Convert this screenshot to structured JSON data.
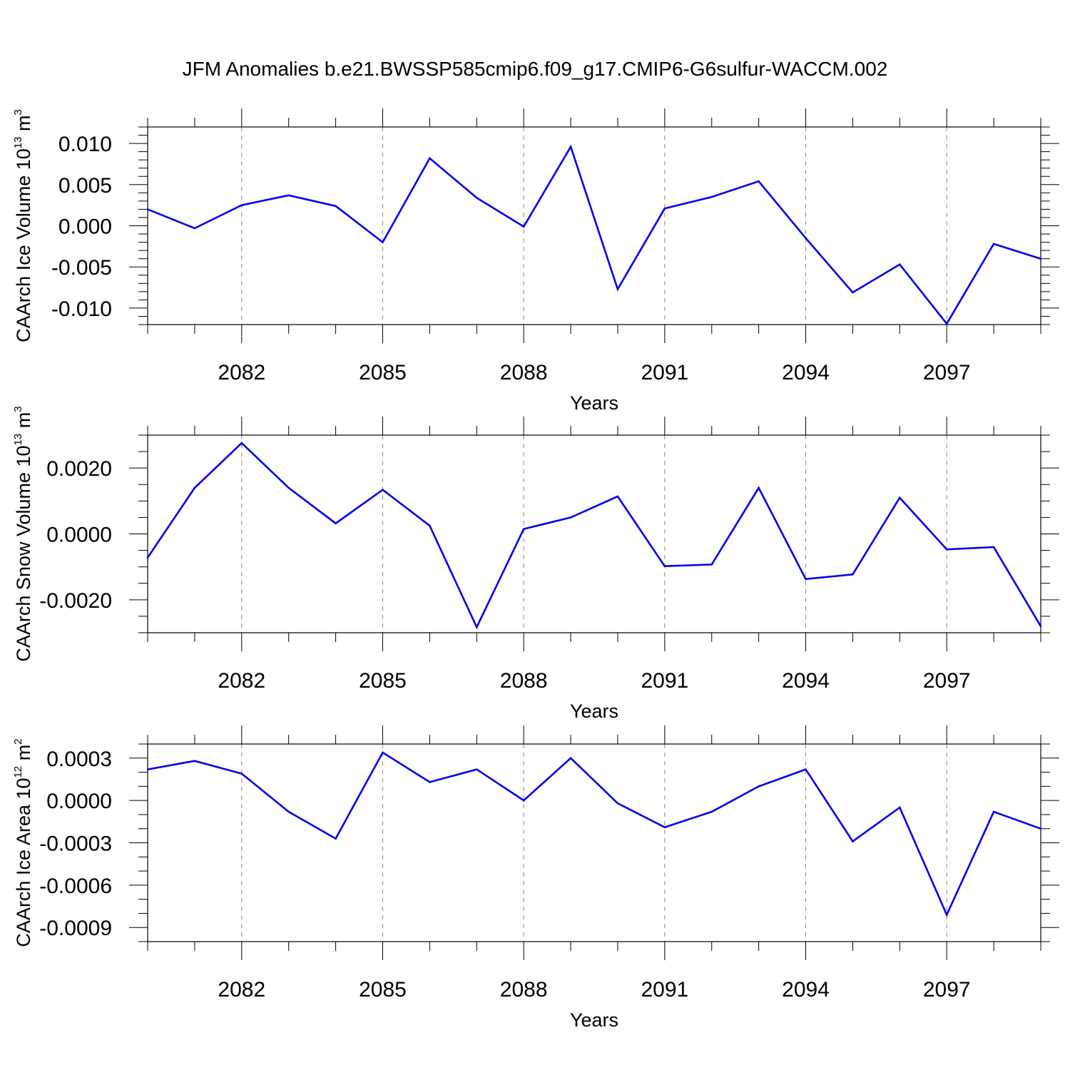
{
  "figure": {
    "title": "JFM Anomalies b.e21.BWSSP585cmip6.f09_g17.CMIP6-G6sulfur-WACCM.002",
    "line_color": "#0000ee",
    "grid_color": "#888888"
  },
  "chart_data": [
    {
      "type": "line",
      "xlabel": "Years",
      "ylabel": {
        "base": "CAArch Ice Volume 10",
        "exp": "13",
        "unit": " m",
        "unit_exp": "3"
      },
      "xlim": [
        2080,
        2099
      ],
      "ylim": [
        -0.012,
        0.012
      ],
      "xticks": [
        2082,
        2085,
        2088,
        2091,
        2094,
        2097
      ],
      "xtick_labels": [
        "2082",
        "2085",
        "2088",
        "2091",
        "2094",
        "2097"
      ],
      "yticks": [
        0.01,
        0.005,
        0.0,
        -0.005,
        -0.01
      ],
      "ytick_labels": [
        "0.010",
        "0.005",
        "0.000",
        "-0.005",
        "-0.010"
      ],
      "grid": "x-dashed",
      "x": [
        2080,
        2081,
        2082,
        2083,
        2084,
        2085,
        2086,
        2087,
        2088,
        2089,
        2090,
        2091,
        2092,
        2093,
        2094,
        2095,
        2096,
        2097,
        2098,
        2099
      ],
      "series": [
        {
          "values": [
            0.002,
            -0.0003,
            0.0025,
            0.0037,
            0.0024,
            -0.002,
            0.0082,
            0.0034,
            -0.0001,
            0.0096,
            -0.0077,
            0.0021,
            0.0035,
            0.0054,
            -0.0015,
            -0.0081,
            -0.0047,
            -0.0119,
            -0.0022,
            -0.004
          ]
        }
      ]
    },
    {
      "type": "line",
      "xlabel": "Years",
      "ylabel": {
        "base": "CAArch Snow Volume 10",
        "exp": "13",
        "unit": " m",
        "unit_exp": "3"
      },
      "xlim": [
        2080,
        2099
      ],
      "ylim": [
        -0.003,
        0.003
      ],
      "xticks": [
        2082,
        2085,
        2088,
        2091,
        2094,
        2097
      ],
      "xtick_labels": [
        "2082",
        "2085",
        "2088",
        "2091",
        "2094",
        "2097"
      ],
      "yticks": [
        0.002,
        0.0,
        -0.002
      ],
      "ytick_labels": [
        "0.0020",
        "0.0000",
        "-0.0020"
      ],
      "grid": "x-dashed",
      "x": [
        2080,
        2081,
        2082,
        2083,
        2084,
        2085,
        2086,
        2087,
        2088,
        2089,
        2090,
        2091,
        2092,
        2093,
        2094,
        2095,
        2096,
        2097,
        2098,
        2099
      ],
      "series": [
        {
          "values": [
            -0.00072,
            0.0014,
            0.00276,
            0.0014,
            0.00032,
            0.00134,
            0.00025,
            -0.00283,
            0.00015,
            0.0005,
            0.00114,
            -0.00098,
            -0.00093,
            0.0014,
            -0.00137,
            -0.00123,
            0.0011,
            -0.00047,
            -0.0004,
            -0.0028
          ]
        }
      ]
    },
    {
      "type": "line",
      "xlabel": "Years",
      "ylabel": {
        "base": "CAArch Ice Area 10",
        "exp": "12",
        "unit": " m",
        "unit_exp": "2"
      },
      "xlim": [
        2080,
        2099
      ],
      "ylim": [
        -0.001,
        0.0004
      ],
      "xticks": [
        2082,
        2085,
        2088,
        2091,
        2094,
        2097
      ],
      "xtick_labels": [
        "2082",
        "2085",
        "2088",
        "2091",
        "2094",
        "2097"
      ],
      "yticks": [
        0.0003,
        0.0,
        -0.0003,
        -0.0006,
        -0.0009
      ],
      "ytick_labels": [
        "0.0003",
        "0.0000",
        "-0.0003",
        "-0.0006",
        "-0.0009"
      ],
      "grid": "x-dashed",
      "x": [
        2080,
        2081,
        2082,
        2083,
        2084,
        2085,
        2086,
        2087,
        2088,
        2089,
        2090,
        2091,
        2092,
        2093,
        2094,
        2095,
        2096,
        2097,
        2098,
        2099
      ],
      "series": [
        {
          "values": [
            0.00022,
            0.00028,
            0.00019,
            -8e-05,
            -0.00027,
            0.00034,
            0.00013,
            0.00022,
            0.0,
            0.0003,
            -2e-05,
            -0.00019,
            -8e-05,
            0.0001,
            0.00022,
            -0.00029,
            -5e-05,
            -0.00081,
            -8e-05,
            -0.0002
          ]
        }
      ]
    }
  ]
}
